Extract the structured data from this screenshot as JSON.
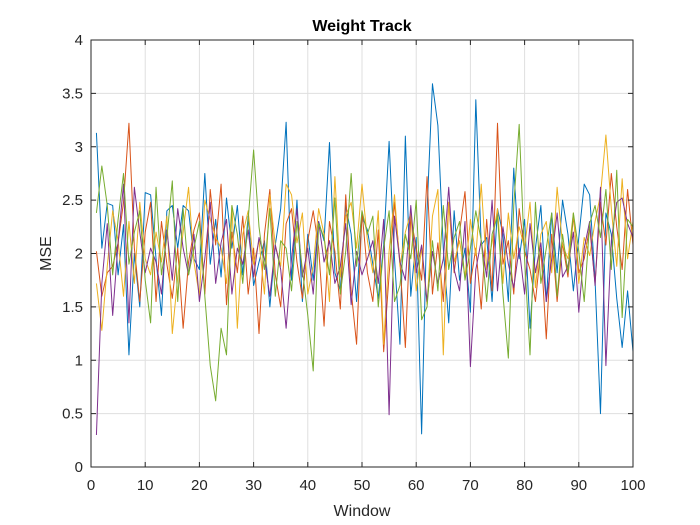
{
  "chart_data": {
    "type": "line",
    "title": "Weight Track",
    "xlabel": "Window",
    "ylabel": "MSE",
    "xlim": [
      0,
      100
    ],
    "ylim": [
      0,
      4
    ],
    "xticks": [
      "0",
      "10",
      "20",
      "30",
      "40",
      "50",
      "60",
      "70",
      "80",
      "90",
      "100"
    ],
    "yticks": [
      "0",
      "0.5",
      "1",
      "1.5",
      "2",
      "2.5",
      "3",
      "3.5",
      "4"
    ],
    "grid": true,
    "legend": "none",
    "x": [
      1,
      2,
      3,
      4,
      5,
      6,
      7,
      8,
      9,
      10,
      11,
      12,
      13,
      14,
      15,
      16,
      17,
      18,
      19,
      20,
      21,
      22,
      23,
      24,
      25,
      26,
      27,
      28,
      29,
      30,
      31,
      32,
      33,
      34,
      35,
      36,
      37,
      38,
      39,
      40,
      41,
      42,
      43,
      44,
      45,
      46,
      47,
      48,
      49,
      50,
      51,
      52,
      53,
      54,
      55,
      56,
      57,
      58,
      59,
      60,
      61,
      62,
      63,
      64,
      65,
      66,
      67,
      68,
      69,
      70,
      71,
      72,
      73,
      74,
      75,
      76,
      77,
      78,
      79,
      80,
      81,
      82,
      83,
      84,
      85,
      86,
      87,
      88,
      89,
      90,
      91,
      92,
      93,
      94,
      95,
      96,
      97,
      98,
      99,
      100
    ],
    "series": [
      {
        "color": "#0072BD",
        "values": [
          3.13,
          2.05,
          2.47,
          2.45,
          1.8,
          2.27,
          1.05,
          2.0,
          1.5,
          2.57,
          2.55,
          1.95,
          1.42,
          2.4,
          2.45,
          2.05,
          2.45,
          2.4,
          1.95,
          1.85,
          2.75,
          1.9,
          2.32,
          1.78,
          2.52,
          2.05,
          2.45,
          1.8,
          2.35,
          1.7,
          1.92,
          2.12,
          1.5,
          2.08,
          2.42,
          3.23,
          1.75,
          2.5,
          1.55,
          2.18,
          1.75,
          2.3,
          2.12,
          3.04,
          1.82,
          1.65,
          2.45,
          2.18,
          1.55,
          2.35,
          2.22,
          1.9,
          1.58,
          2.08,
          3.05,
          1.95,
          1.15,
          3.1,
          1.6,
          2.15,
          0.31,
          2.4,
          3.59,
          3.2,
          2.05,
          1.35,
          2.4,
          1.75,
          2.05,
          1.45,
          3.44,
          2.08,
          2.15,
          1.55,
          2.42,
          2.18,
          1.55,
          2.8,
          1.95,
          2.32,
          1.3,
          2.05,
          2.45,
          1.55,
          2.38,
          1.82,
          2.5,
          2.18,
          1.65,
          2.15,
          2.65,
          2.55,
          1.75,
          0.5,
          2.38,
          2.18,
          1.58,
          1.12,
          1.65,
          1.08
        ]
      },
      {
        "color": "#D95319",
        "values": [
          2.02,
          1.6,
          1.82,
          1.88,
          2.1,
          2.48,
          3.22,
          2.05,
          1.55,
          2.2,
          2.48,
          1.55,
          2.3,
          1.9,
          1.58,
          2.05,
          1.3,
          1.92,
          2.22,
          2.38,
          1.62,
          2.6,
          2.08,
          2.65,
          1.52,
          2.2,
          1.82,
          2.35,
          1.62,
          2.05,
          1.25,
          2.18,
          2.6,
          1.8,
          1.5,
          2.28,
          2.42,
          1.92,
          1.58,
          2.12,
          2.4,
          2.05,
          1.32,
          2.3,
          2.02,
          1.48,
          2.55,
          1.65,
          1.15,
          2.4,
          1.82,
          1.55,
          2.22,
          1.08,
          1.8,
          2.48,
          1.92,
          1.12,
          2.35,
          2.05,
          1.75,
          2.72,
          1.62,
          2.1,
          1.55,
          2.48,
          1.82,
          2.2,
          2.58,
          1.72,
          2.05,
          1.48,
          2.32,
          1.65,
          3.22,
          1.9,
          2.12,
          1.62,
          2.42,
          2.02,
          1.85,
          1.55,
          2.05,
          1.2,
          2.18,
          1.55,
          2.1,
          1.78,
          2.35,
          1.82,
          1.95,
          2.25,
          1.72,
          2.48,
          2.08,
          2.75,
          2.25,
          1.85,
          2.6,
          2.08
        ]
      },
      {
        "color": "#EDB120",
        "values": [
          1.72,
          1.28,
          1.88,
          2.4,
          2.12,
          1.6,
          2.3,
          1.72,
          2.48,
          1.95,
          1.8,
          2.2,
          1.92,
          2.35,
          1.25,
          1.78,
          2.2,
          2.62,
          1.92,
          1.6,
          2.5,
          2.32,
          2.15,
          2.05,
          1.72,
          2.45,
          1.3,
          2.18,
          2.4,
          1.9,
          2.12,
          1.62,
          2.55,
          2.08,
          1.88,
          2.65,
          2.55,
          2.1,
          2.38,
          1.62,
          1.88,
          2.42,
          2.18,
          1.55,
          2.72,
          1.78,
          2.35,
          2.48,
          2.05,
          2.65,
          2.12,
          1.82,
          2.4,
          1.15,
          2.02,
          2.55,
          1.88,
          2.2,
          2.38,
          1.65,
          2.05,
          1.52,
          2.35,
          2.6,
          1.05,
          2.48,
          1.92,
          2.12,
          1.78,
          2.32,
          1.98,
          2.65,
          1.85,
          2.1,
          2.42,
          1.72,
          2.38,
          1.95,
          2.25,
          2.05,
          2.48,
          1.68,
          2.18,
          2.3,
          1.82,
          2.62,
          2.08,
          1.95,
          2.38,
          1.72,
          2.15,
          1.98,
          2.3,
          2.55,
          3.11,
          2.42,
          1.88,
          2.7,
          1.95,
          2.3
        ]
      },
      {
        "color": "#7E2F8E",
        "values": [
          0.3,
          1.72,
          2.28,
          1.42,
          2.1,
          2.65,
          1.35,
          2.62,
          2.2,
          1.82,
          2.05,
          1.92,
          1.62,
          2.22,
          1.75,
          2.42,
          2.05,
          1.8,
          2.18,
          1.55,
          1.95,
          2.48,
          1.72,
          2.1,
          2.32,
          1.62,
          2.05,
          1.9,
          2.22,
          1.78,
          2.15,
          1.95,
          1.6,
          2.08,
          1.85,
          1.3,
          1.95,
          2.42,
          1.78,
          2.05,
          1.62,
          2.3,
          1.92,
          2.12,
          1.72,
          1.88,
          2.28,
          1.52,
          2.02,
          1.8,
          1.95,
          2.12,
          1.72,
          2.32,
          0.49,
          2.35,
          1.92,
          1.75,
          2.45,
          1.82,
          2.08,
          1.55,
          2.02,
          1.72,
          1.95,
          2.62,
          1.85,
          1.65,
          2.3,
          0.94,
          1.85,
          2.12,
          1.78,
          2.5,
          1.65,
          2.25,
          1.9,
          1.68,
          2.05,
          1.62,
          2.28,
          1.82,
          2.1,
          1.55,
          1.95,
          2.38,
          1.78,
          1.88,
          2.2,
          1.45,
          2.05,
          2.3,
          1.7,
          2.62,
          0.95,
          2.12,
          2.48,
          2.52,
          2.28,
          2.15
        ]
      },
      {
        "color": "#77AC30",
        "values": [
          2.38,
          2.82,
          2.45,
          1.8,
          2.32,
          2.75,
          1.9,
          2.2,
          2.4,
          1.75,
          1.35,
          2.62,
          1.8,
          2.15,
          2.68,
          1.55,
          2.42,
          1.8,
          2.05,
          2.3,
          1.6,
          0.95,
          0.62,
          1.3,
          1.05,
          2.45,
          2.18,
          1.72,
          2.32,
          2.97,
          2.25,
          1.85,
          2.42,
          1.6,
          2.12,
          2.05,
          1.65,
          2.3,
          1.85,
          1.42,
          0.9,
          2.28,
          2.15,
          1.8,
          2.52,
          1.62,
          2.02,
          2.75,
          1.88,
          2.4,
          2.18,
          2.35,
          1.5,
          2.05,
          2.4,
          1.55,
          1.7,
          2.18,
          1.95,
          2.5,
          1.38,
          1.5,
          2.12,
          1.65,
          2.45,
          1.85,
          2.15,
          2.3,
          1.75,
          2.05,
          2.4,
          2.12,
          1.55,
          2.18,
          2.35,
          1.62,
          1.02,
          2.45,
          3.21,
          1.95,
          1.05,
          2.48,
          1.72,
          2.05,
          2.38,
          1.6,
          2.18,
          1.82,
          2.38,
          2.02,
          1.55,
          2.28,
          2.45,
          2.15,
          2.6,
          1.85,
          2.78,
          1.4,
          2.32,
          2.25
        ]
      }
    ]
  }
}
